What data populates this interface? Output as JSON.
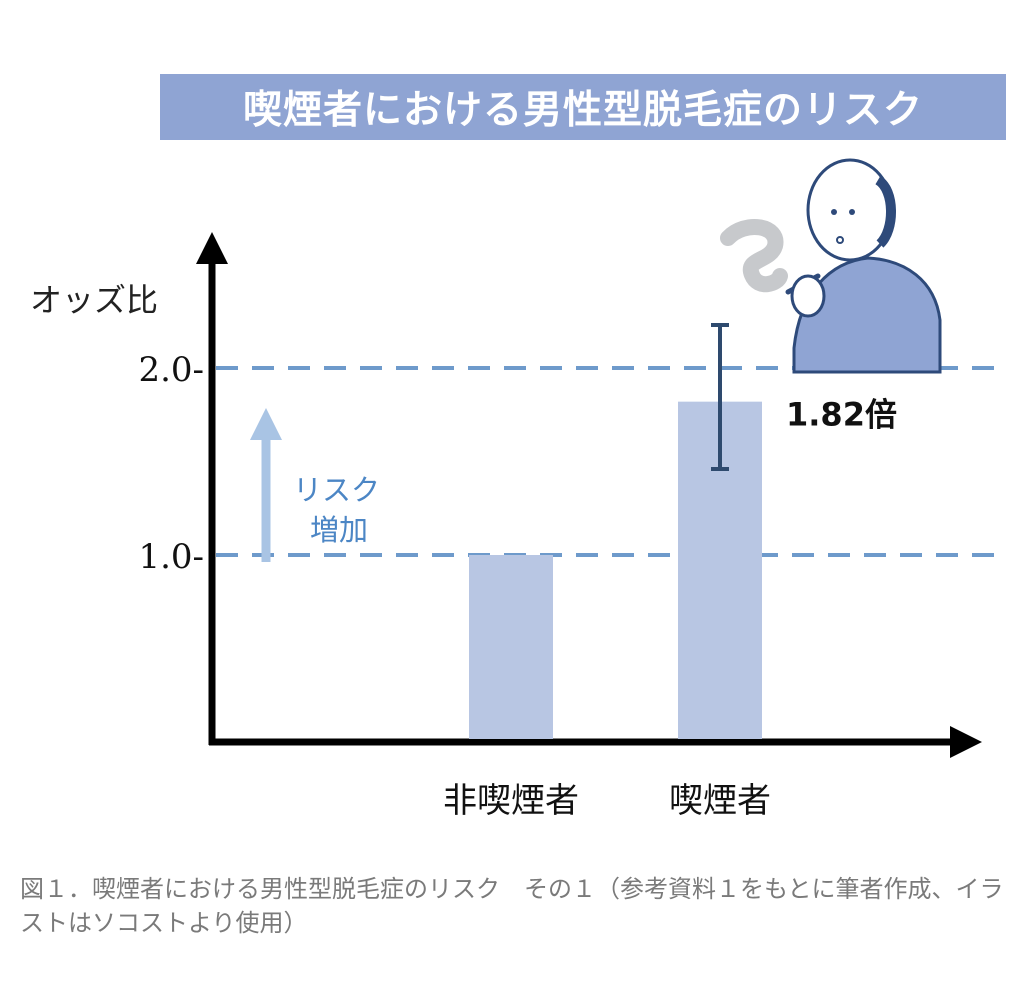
{
  "header": {
    "title": "喫煙者における男性型脱毛症のリスク"
  },
  "chart_data": {
    "type": "bar",
    "title": "喫煙者における男性型脱毛症のリスク",
    "ylabel": "オッズ比",
    "xlabel": "",
    "categories": [
      "非喫煙者",
      "喫煙者"
    ],
    "values": [
      1.0,
      1.82
    ],
    "error_bars": [
      null,
      {
        "low": 1.46,
        "high": 2.23
      }
    ],
    "value_label": "1.82倍",
    "yticks": [
      {
        "value": 1.0,
        "label": "1.0-"
      },
      {
        "value": 2.0,
        "label": "2.0-"
      }
    ],
    "reference_lines": [
      1.0,
      2.0
    ],
    "ylim": [
      0,
      2.6
    ],
    "annotation": {
      "line1": "リスク",
      "line2": "増加"
    },
    "bar_color": "#b8c6e3",
    "accent_color": "#6e9acb",
    "error_bar_color": "#2e4a6e"
  },
  "caption": "図１．喫煙者における男性型脱毛症のリスク　その１（参考資料１をもとに筆者作成、イラストはソコストより使用）"
}
